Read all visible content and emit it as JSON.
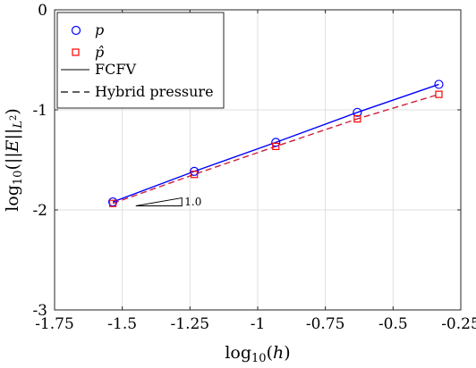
{
  "chart_data": {
    "type": "line",
    "xlabel": "log10(h)",
    "ylabel": "log10(||E||L²)",
    "xlim": [
      -1.75,
      -0.25
    ],
    "ylim": [
      -3,
      0
    ],
    "xticks": [
      -1.75,
      -1.5,
      -1.25,
      -1,
      -0.75,
      -0.5,
      -0.25
    ],
    "xtick_labels": [
      "-1.75",
      "-1.5",
      "-1.25",
      "-1",
      "-0.75",
      "-0.5",
      "-0.25"
    ],
    "yticks": [
      0,
      -1,
      -2,
      -3
    ],
    "ytick_labels": [
      "0",
      "-1",
      "-2",
      "-3"
    ],
    "grid": true,
    "legend_position": "top-left",
    "x": [
      -1.535,
      -1.234,
      -0.933,
      -0.632,
      -0.331
    ],
    "series": [
      {
        "name": "p",
        "kind": "markers",
        "marker": "circle",
        "color": "#0000ff",
        "values": [
          -1.92,
          -1.615,
          -1.325,
          -1.025,
          -0.745
        ]
      },
      {
        "name": "p̂",
        "kind": "markers",
        "marker": "square",
        "color": "#ff0000",
        "values": [
          -1.935,
          -1.645,
          -1.365,
          -1.09,
          -0.845
        ]
      },
      {
        "name": "FCFV",
        "kind": "line",
        "dash": "solid",
        "color": "#0000ff",
        "values": [
          -1.92,
          -1.615,
          -1.325,
          -1.025,
          -0.745
        ]
      },
      {
        "name": "Hybrid pressure",
        "kind": "line",
        "dash": "dashed",
        "color": "#cc1f3c",
        "values": [
          -1.935,
          -1.645,
          -1.365,
          -1.09,
          -0.845
        ]
      }
    ],
    "slope_triangle": {
      "label": "1.0",
      "x": [
        -1.45,
        -1.28
      ],
      "y": [
        -1.96,
        -1.88
      ]
    }
  }
}
